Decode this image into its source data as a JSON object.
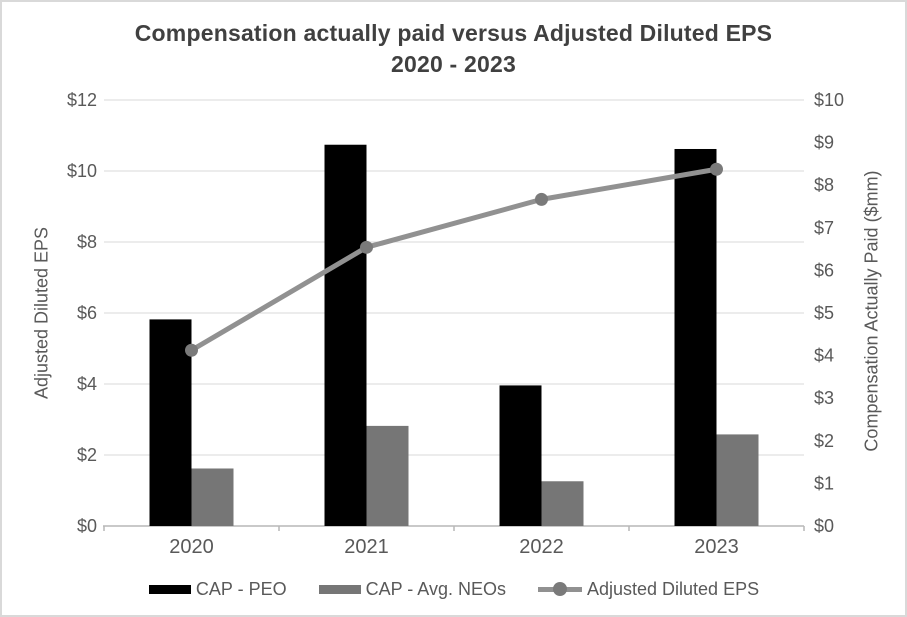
{
  "title": {
    "line1": "Compensation actually paid versus Adjusted Diluted EPS",
    "line2": "2020 - 2023"
  },
  "colors": {
    "bar_peo": "#000000",
    "bar_neos": "#767676",
    "line_eps": "#919191",
    "line_marker": "#7a7a7a",
    "gridline": "#d9d9d9",
    "axis_line": "#b7b7b7",
    "tick_text": "#595959",
    "title_text": "#404040",
    "frame_border": "#d9d9d9"
  },
  "chart_data": {
    "type": "combo-bar-line",
    "categories": [
      "2020",
      "2021",
      "2022",
      "2023"
    ],
    "series": [
      {
        "name": "CAP - PEO",
        "type": "bar",
        "axis": "right",
        "color": "#000000",
        "values": [
          4.85,
          8.95,
          3.3,
          8.85
        ]
      },
      {
        "name": "CAP - Avg. NEOs",
        "type": "bar",
        "axis": "right",
        "color": "#767676",
        "values": [
          1.35,
          2.35,
          1.05,
          2.15
        ]
      },
      {
        "name": "Adjusted Diluted EPS",
        "type": "line",
        "axis": "left",
        "color": "#919191",
        "marker_color": "#7a7a7a",
        "values": [
          4.95,
          7.85,
          9.2,
          10.05
        ]
      }
    ],
    "left_axis": {
      "title": "Adjusted Diluted EPS",
      "min": 0,
      "max": 12,
      "step": 2,
      "tick_labels": [
        "$0",
        "$2",
        "$4",
        "$6",
        "$8",
        "$10",
        "$12"
      ]
    },
    "right_axis": {
      "title": "Compensation Actually Paid ($mm)",
      "min": 0,
      "max": 10,
      "step": 1,
      "tick_labels": [
        "$0",
        "$1",
        "$2",
        "$3",
        "$4",
        "$5",
        "$6",
        "$7",
        "$8",
        "$9",
        "$10"
      ]
    },
    "grid": true,
    "legend_position": "bottom"
  }
}
